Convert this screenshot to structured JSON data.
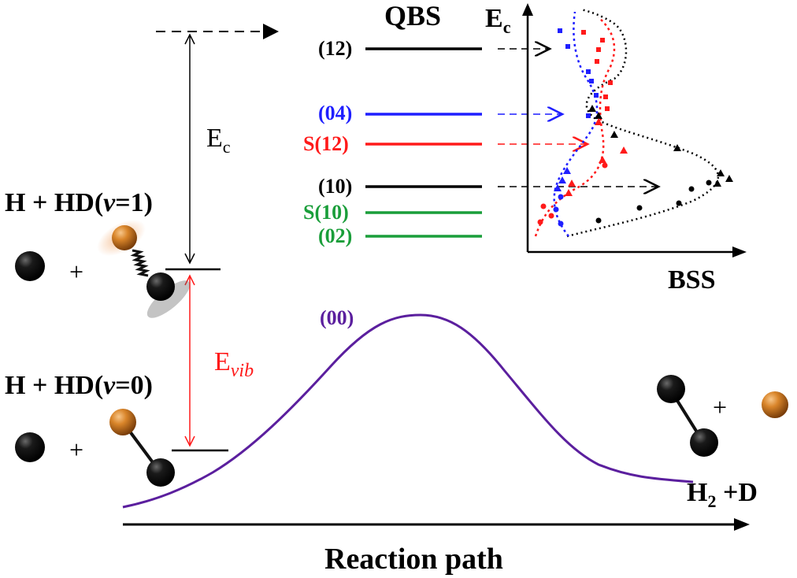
{
  "reactants_v1": {
    "label_main": "H + HD(",
    "label_v": "v",
    "label_end": "=1)"
  },
  "reactants_v0": {
    "label_main": "H + HD(",
    "label_v": "v",
    "label_end": "=0)"
  },
  "plus_sign": "+",
  "ec_label": {
    "main": "E",
    "sub": "c"
  },
  "evib_label": {
    "main": "E",
    "sub": "vib"
  },
  "qbs_header": "QBS",
  "qbs_states": [
    {
      "label": "(12)",
      "color": "#000000"
    },
    {
      "label": "(04)",
      "color": "#1f1fff"
    },
    {
      "label": "S(12)",
      "color": "#ff1a1a"
    },
    {
      "label": "(10)",
      "color": "#000000"
    },
    {
      "label": "S(10)",
      "color": "#1a9e3a"
    },
    {
      "label": "(02)",
      "color": "#1a9e3a"
    }
  ],
  "inset": {
    "y_axis_label": {
      "main": "E",
      "sub": "c"
    },
    "x_axis_label": "BSS"
  },
  "barrier_label": "(00)",
  "products": {
    "h": "H",
    "sub": "2",
    "rest": " +D"
  },
  "x_axis_label": "Reaction path",
  "colors": {
    "curve": "#5b1f9e",
    "evib_arrow": "#ff1a1a",
    "d_atom": "#d9852a",
    "h_atom": "#111111"
  }
}
